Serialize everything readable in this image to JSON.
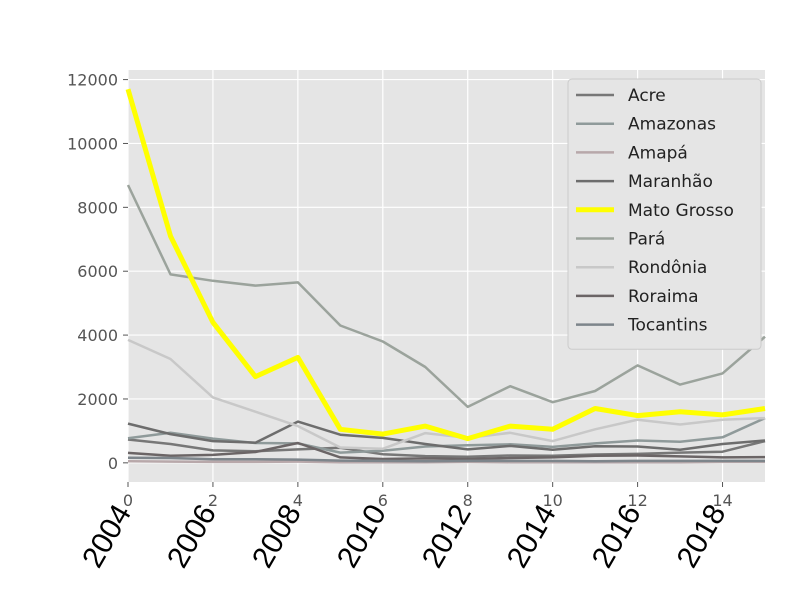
{
  "chart_data": {
    "type": "line",
    "title": "",
    "xlabel": "",
    "ylabel": "",
    "xlim": [
      0,
      15
    ],
    "ylim": [
      -600,
      12300
    ],
    "grid": true,
    "background": "#e5e5e5",
    "legend_position": "top-right",
    "x": [
      0,
      1,
      2,
      3,
      4,
      5,
      6,
      7,
      8,
      9,
      10,
      11,
      12,
      13,
      14,
      15
    ],
    "x_ticks": [
      0,
      2,
      4,
      6,
      8,
      10,
      12,
      14
    ],
    "x_tick_labels": [
      "0",
      "2",
      "4",
      "6",
      "8",
      "10",
      "12",
      "14"
    ],
    "y_ticks": [
      0,
      2000,
      4000,
      6000,
      8000,
      10000,
      12000
    ],
    "y_tick_labels": [
      "0",
      "2000",
      "4000",
      "6000",
      "8000",
      "10000",
      "12000"
    ],
    "year_ticks": [
      0,
      2,
      4,
      6,
      8,
      10,
      12,
      14
    ],
    "year_labels": [
      "2004",
      "2006",
      "2008",
      "2010",
      "2012",
      "2014",
      "2016",
      "2018"
    ],
    "series": [
      {
        "name": "Acre",
        "color": "#777777",
        "width": 2.5,
        "values": [
          730,
          590,
          390,
          360,
          420,
          470,
          270,
          210,
          190,
          230,
          220,
          260,
          280,
          320,
          350,
          680
        ]
      },
      {
        "name": "Amazonas",
        "color": "#8f9a9a",
        "width": 2.5,
        "values": [
          770,
          940,
          760,
          620,
          610,
          320,
          380,
          510,
          550,
          580,
          500,
          610,
          700,
          660,
          800,
          1400
        ]
      },
      {
        "name": "Amapá",
        "color": "#b8a8aa",
        "width": 2.5,
        "values": [
          50,
          40,
          30,
          30,
          40,
          20,
          20,
          20,
          30,
          20,
          20,
          20,
          20,
          20,
          30,
          30
        ]
      },
      {
        "name": "Maranhão",
        "color": "#6d6d6d",
        "width": 2.5,
        "values": [
          1230,
          900,
          680,
          630,
          1290,
          880,
          780,
          590,
          420,
          530,
          410,
          520,
          510,
          410,
          590,
          700
        ]
      },
      {
        "name": "Mato Grosso",
        "color": "#ffff00",
        "width": 5,
        "values": [
          11700,
          7100,
          4400,
          2700,
          3300,
          1050,
          900,
          1150,
          760,
          1150,
          1050,
          1700,
          1480,
          1600,
          1500,
          1700
        ]
      },
      {
        "name": "Pará",
        "color": "#9ba39c",
        "width": 2.5,
        "values": [
          8700,
          5900,
          5700,
          5550,
          5650,
          4300,
          3800,
          3000,
          1750,
          2400,
          1900,
          2250,
          3050,
          2450,
          2800,
          3950
        ]
      },
      {
        "name": "Rondônia",
        "color": "#c8c8c8",
        "width": 2.5,
        "values": [
          3850,
          3250,
          2050,
          1600,
          1150,
          480,
          440,
          930,
          780,
          940,
          680,
          1050,
          1350,
          1200,
          1350,
          1400
        ]
      },
      {
        "name": "Roraima",
        "color": "#6b6566",
        "width": 2.5,
        "values": [
          310,
          220,
          250,
          340,
          620,
          170,
          120,
          140,
          120,
          150,
          170,
          220,
          230,
          200,
          170,
          180
        ]
      },
      {
        "name": "Tocantins",
        "color": "#7d858b",
        "width": 2.5,
        "values": [
          160,
          150,
          110,
          110,
          100,
          70,
          60,
          50,
          60,
          60,
          60,
          50,
          60,
          60,
          60,
          60
        ]
      }
    ]
  }
}
